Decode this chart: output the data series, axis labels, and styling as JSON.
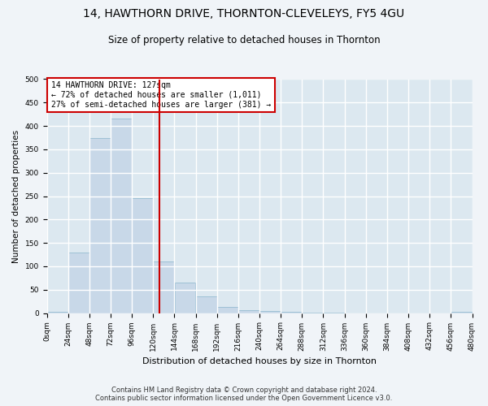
{
  "title": "14, HAWTHORN DRIVE, THORNTON-CLEVELEYS, FY5 4GU",
  "subtitle": "Size of property relative to detached houses in Thornton",
  "xlabel": "Distribution of detached houses by size in Thornton",
  "ylabel": "Number of detached properties",
  "bar_color": "#c8d8e8",
  "bar_edge_color": "#8ab4cc",
  "vline_x": 127,
  "vline_color": "#cc0000",
  "annotation_text": "14 HAWTHORN DRIVE: 127sqm\n← 72% of detached houses are smaller (1,011)\n27% of semi-detached houses are larger (381) →",
  "annotation_box_color": "#ffffff",
  "annotation_box_edge": "#cc0000",
  "bins": [
    0,
    24,
    48,
    72,
    96,
    120,
    144,
    168,
    192,
    216,
    240,
    264,
    288,
    312,
    336,
    360,
    384,
    408,
    432,
    456,
    480
  ],
  "bar_heights": [
    2,
    130,
    375,
    415,
    245,
    110,
    65,
    35,
    13,
    7,
    5,
    3,
    1,
    1,
    0,
    0,
    0,
    0,
    0,
    2
  ],
  "xlim": [
    0,
    480
  ],
  "ylim": [
    0,
    500
  ],
  "yticks": [
    0,
    50,
    100,
    150,
    200,
    250,
    300,
    350,
    400,
    450,
    500
  ],
  "background_color": "#dce8f0",
  "fig_background_color": "#f0f4f8",
  "grid_color": "#ffffff",
  "footer_line1": "Contains HM Land Registry data © Crown copyright and database right 2024.",
  "footer_line2": "Contains public sector information licensed under the Open Government Licence v3.0.",
  "title_fontsize": 10,
  "subtitle_fontsize": 8.5,
  "xlabel_fontsize": 8,
  "ylabel_fontsize": 7.5,
  "tick_fontsize": 6.5,
  "annotation_fontsize": 7,
  "footer_fontsize": 6
}
